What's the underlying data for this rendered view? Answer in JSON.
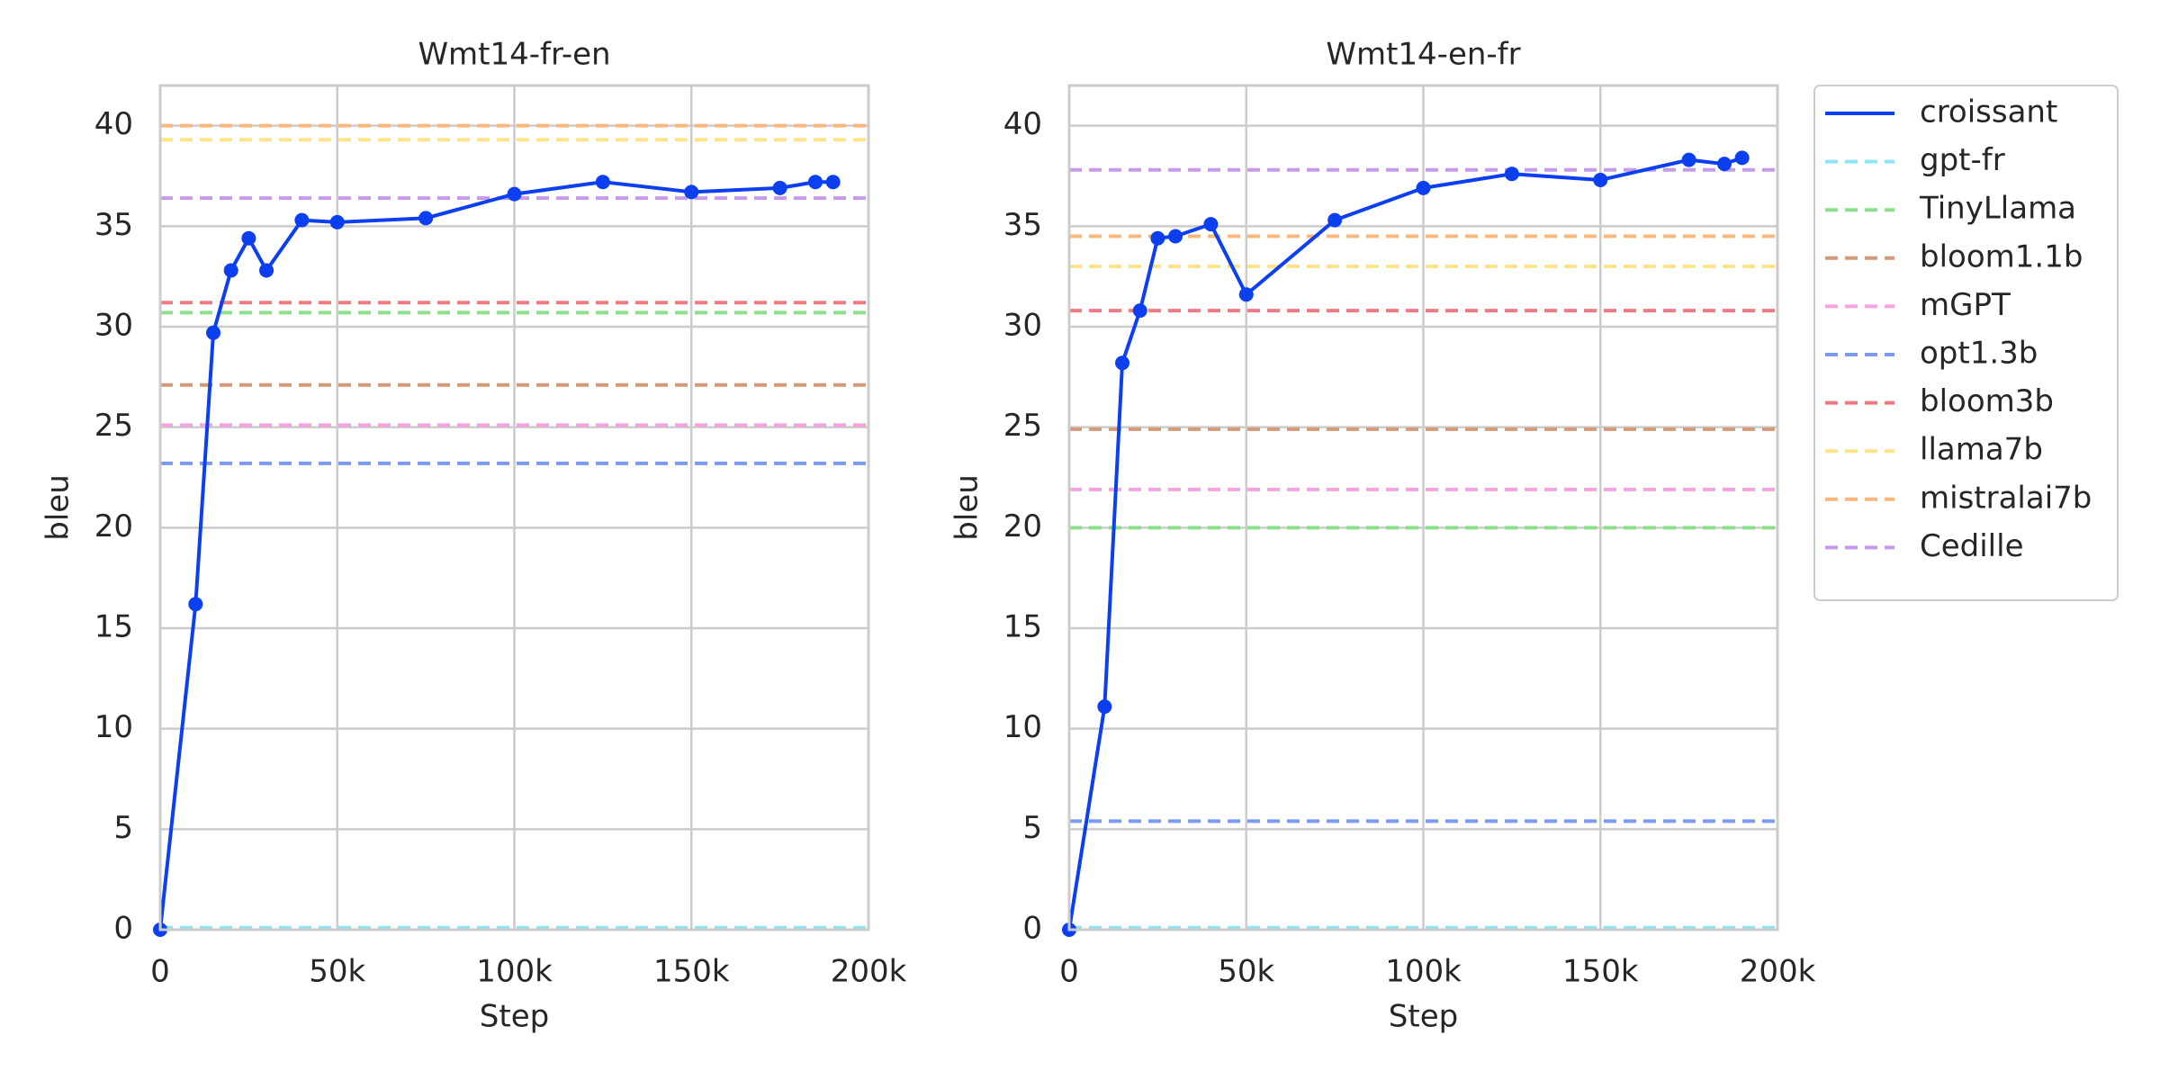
{
  "chart_data": [
    {
      "type": "line",
      "title": "Wmt14-fr-en",
      "x_label": "Step",
      "y_label": "bleu",
      "xlim": [
        0,
        200000
      ],
      "xticks": [
        0,
        {
          "value": 50000,
          "label": "50k"
        },
        {
          "value": 100000,
          "label": "100k"
        },
        {
          "value": 150000,
          "label": "150k"
        },
        {
          "value": 200000,
          "label": "200k"
        }
      ],
      "ylim": [
        0,
        42
      ],
      "yticks": [
        0,
        5,
        10,
        15,
        20,
        25,
        30,
        35,
        40
      ],
      "grid": true,
      "series": [
        {
          "color": "#0b3ff0",
          "style": "solid",
          "marker": true,
          "x": [
            0,
            10000,
            15000,
            20000,
            25000,
            30000,
            40000,
            50000,
            75000,
            100000,
            125000,
            150000,
            175000,
            185000,
            190000
          ],
          "values": [
            0,
            16.2,
            29.7,
            32.8,
            34.4,
            32.8,
            35.3,
            35.2,
            35.4,
            36.6,
            37.2,
            36.7,
            36.9,
            37.2,
            37.2
          ]
        },
        {
          "color": "#8ee5f5",
          "style": "dashed",
          "values": [
            0.1
          ]
        },
        {
          "color": "#8de08b",
          "style": "dashed",
          "values": [
            30.7
          ]
        },
        {
          "color": "#d29a78",
          "style": "dashed",
          "values": [
            27.1
          ]
        },
        {
          "color": "#f4a4dd",
          "style": "dashed",
          "values": [
            25.1
          ]
        },
        {
          "color": "#7c9af0",
          "style": "dashed",
          "values": [
            23.2
          ]
        },
        {
          "color": "#ee7b82",
          "style": "dashed",
          "values": [
            31.2
          ]
        },
        {
          "color": "#fde38a",
          "style": "dashed",
          "values": [
            39.3
          ]
        },
        {
          "color": "#fbb87d",
          "style": "dashed",
          "values": [
            40.0
          ]
        },
        {
          "color": "#c59ae8",
          "style": "dashed",
          "values": [
            36.4
          ]
        }
      ]
    },
    {
      "type": "line",
      "title": "Wmt14-en-fr",
      "x_label": "Step",
      "y_label": "bleu",
      "legend": "outside right",
      "xlim": [
        0,
        200000
      ],
      "xticks": [
        0,
        {
          "value": 50000,
          "label": "50k"
        },
        {
          "value": 100000,
          "label": "100k"
        },
        {
          "value": 150000,
          "label": "150k"
        },
        {
          "value": 200000,
          "label": "200k"
        }
      ],
      "ylim": [
        0,
        42
      ],
      "yticks": [
        0,
        5,
        10,
        15,
        20,
        25,
        30,
        35,
        40
      ],
      "grid": true,
      "series": [
        {
          "name": "croissant",
          "color": "#0b3ff0",
          "style": "solid",
          "marker": true,
          "x": [
            0,
            10000,
            15000,
            20000,
            25000,
            30000,
            40000,
            50000,
            75000,
            100000,
            125000,
            150000,
            175000,
            185000,
            190000
          ],
          "values": [
            0,
            11.1,
            28.2,
            30.8,
            34.4,
            34.5,
            35.1,
            31.6,
            35.3,
            36.9,
            37.6,
            37.3,
            38.3,
            38.1,
            38.4
          ]
        },
        {
          "name": "gpt-fr",
          "color": "#8ee5f5",
          "style": "dashed",
          "values": [
            0.1
          ]
        },
        {
          "name": "TinyLlama",
          "color": "#8de08b",
          "style": "dashed",
          "values": [
            20.0
          ]
        },
        {
          "name": "bloom1.1b",
          "color": "#d29a78",
          "style": "dashed",
          "values": [
            24.9
          ]
        },
        {
          "name": "mGPT",
          "color": "#f4a4dd",
          "style": "dashed",
          "values": [
            21.9
          ]
        },
        {
          "name": "opt1.3b",
          "color": "#7c9af0",
          "style": "dashed",
          "values": [
            5.4
          ]
        },
        {
          "name": "bloom3b",
          "color": "#ee7b82",
          "style": "dashed",
          "values": [
            30.8
          ]
        },
        {
          "name": "llama7b",
          "color": "#fde38a",
          "style": "dashed",
          "values": [
            33.0
          ]
        },
        {
          "name": "mistralai7b",
          "color": "#fbb87d",
          "style": "dashed",
          "values": [
            34.5
          ]
        },
        {
          "name": "Cedille",
          "color": "#c59ae8",
          "style": "dashed",
          "values": [
            37.8
          ]
        }
      ]
    }
  ]
}
